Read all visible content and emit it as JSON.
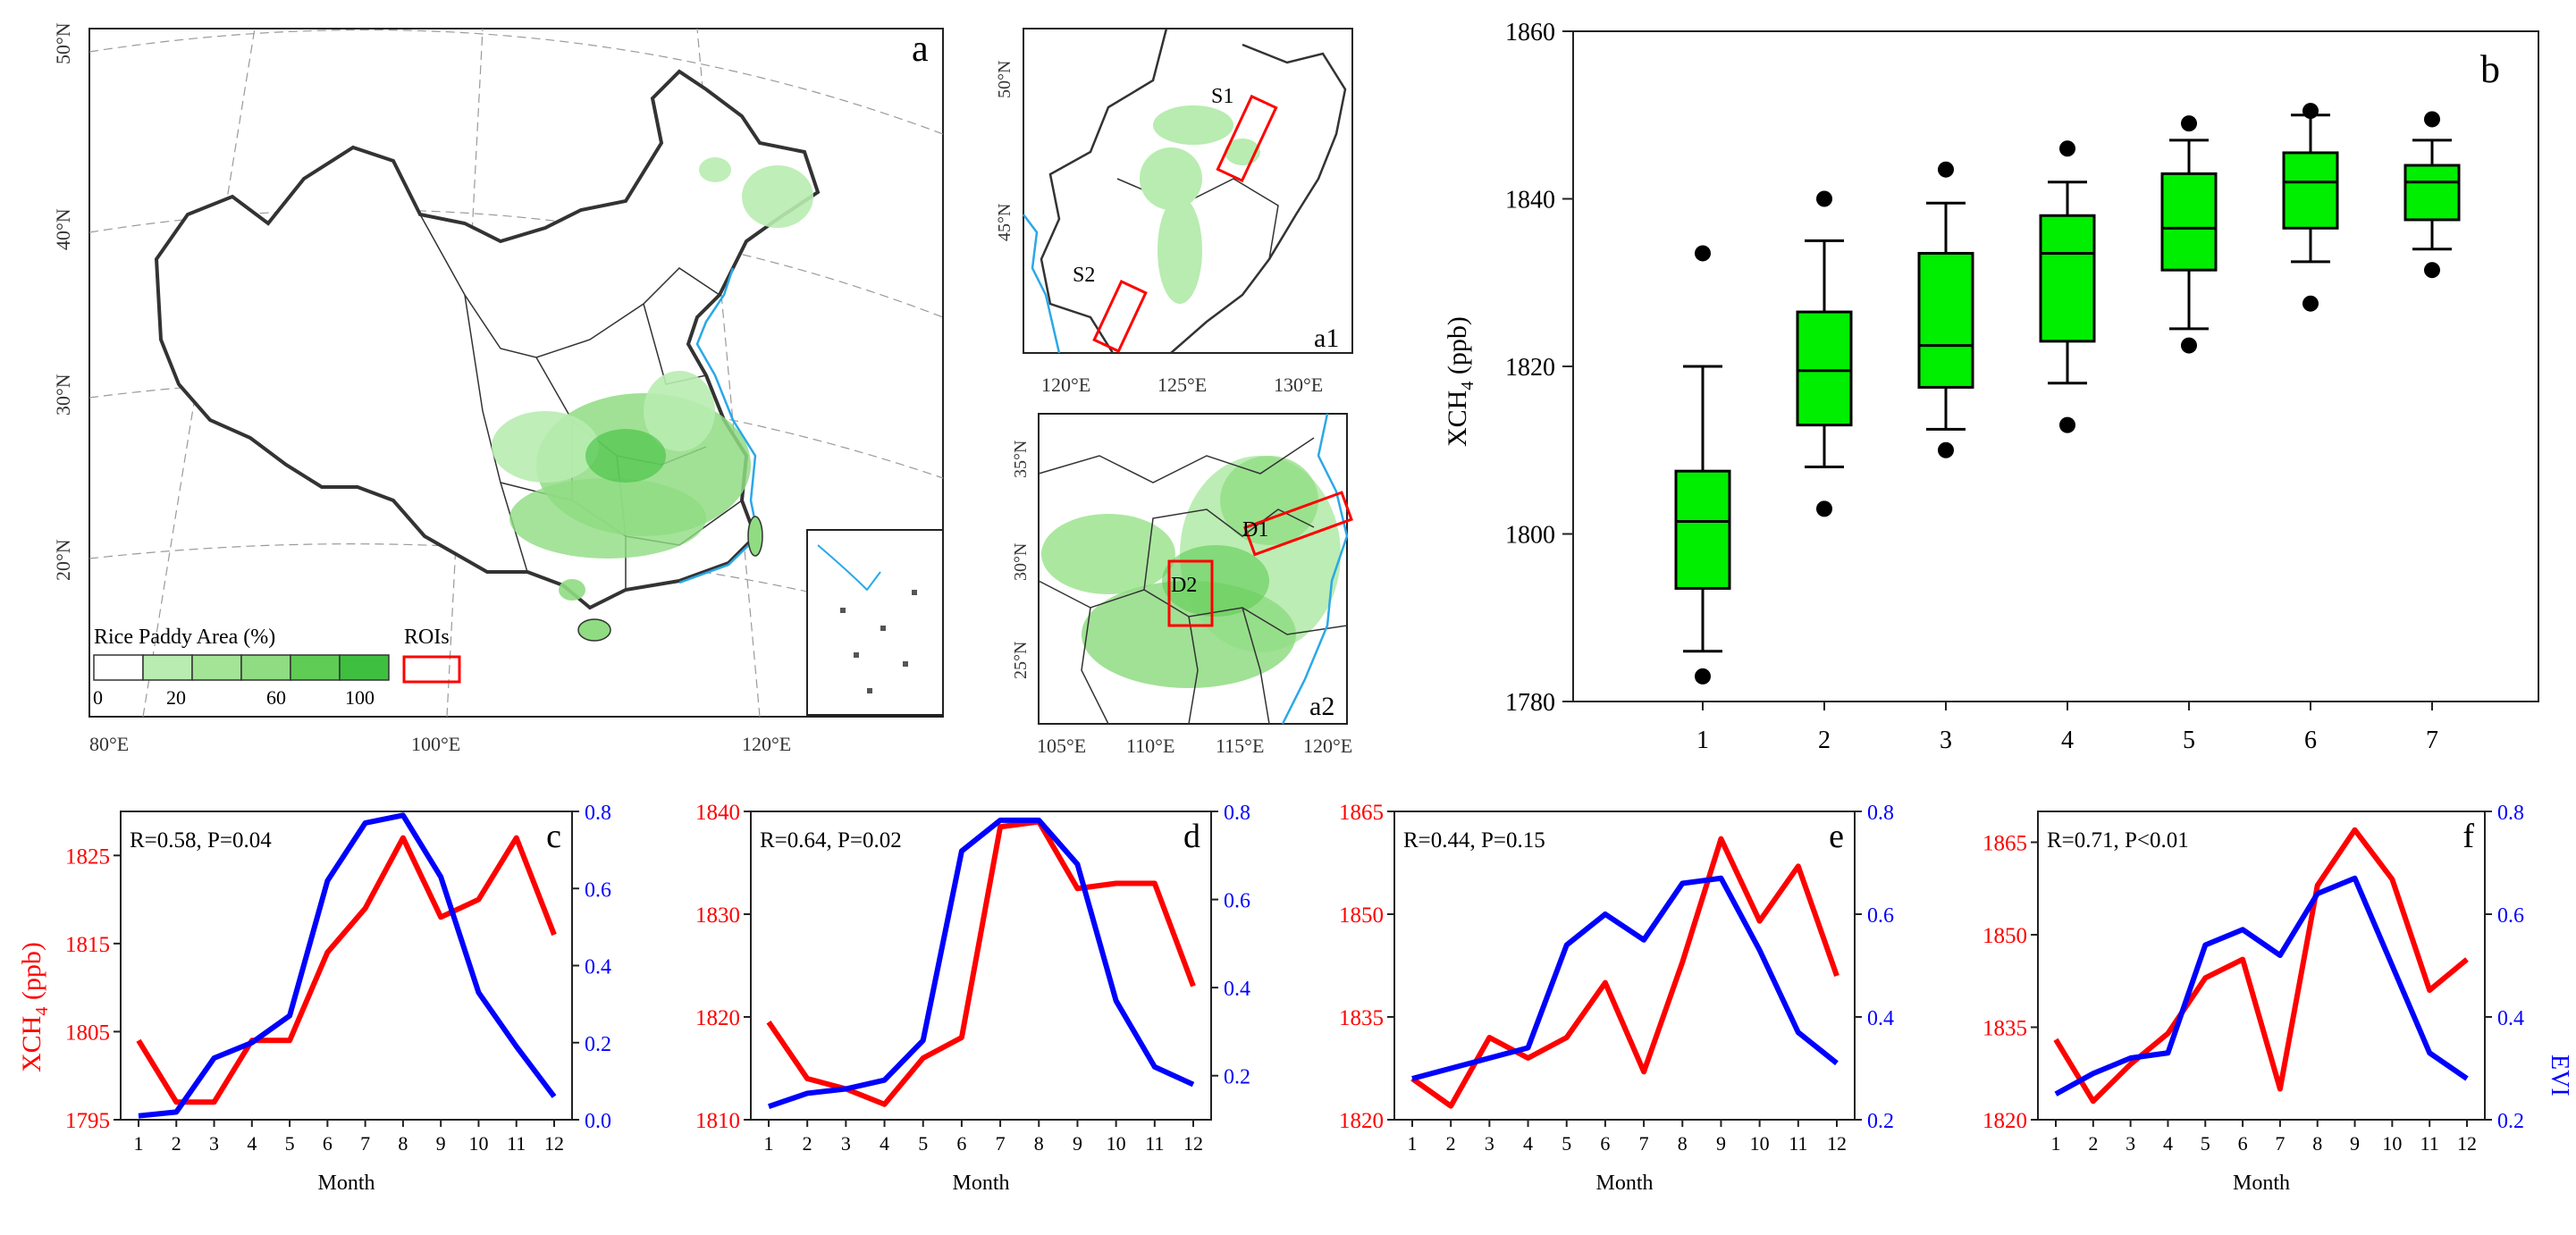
{
  "colors": {
    "rice_light": "#b8ecb0",
    "rice_mid": "#8fdc82",
    "rice_dark": "#3fbf3f",
    "roi": "#ff0000",
    "coast": "#2aa8e8",
    "border": "#333333",
    "box_fill": "#00ee00",
    "xch4": "#ff0000",
    "evi": "#0000ff"
  },
  "map_a": {
    "panel_letter": "a",
    "lat_labels": [
      "50°N",
      "40°N",
      "30°N",
      "20°N"
    ],
    "lon_labels": [
      "80°E",
      "100°E",
      "120°E"
    ],
    "legend_title": "Rice Paddy Area (%)",
    "legend_ticks": [
      "0",
      "20",
      "60",
      "100"
    ],
    "legend_roi": "ROIs"
  },
  "map_a1": {
    "panel_letter": "a1",
    "lat_labels": [
      "50°N",
      "45°N"
    ],
    "lon_labels": [
      "120°E",
      "125°E",
      "130°E"
    ],
    "roi_labels": [
      "S1",
      "S2"
    ]
  },
  "map_a2": {
    "panel_letter": "a2",
    "lat_labels": [
      "35°N",
      "30°N",
      "25°N"
    ],
    "lon_labels": [
      "105°E",
      "110°E",
      "115°E",
      "120°E"
    ],
    "roi_labels": [
      "D1",
      "D2"
    ]
  },
  "chart_data": [
    {
      "panel": "b",
      "type": "box",
      "ylabel_main": "XCH",
      "ylabel_sub": "4",
      "ylabel_unit": " (ppb)",
      "ylim": [
        1780,
        1860
      ],
      "yticks": [
        1780,
        1800,
        1820,
        1840,
        1860
      ],
      "categories": [
        "1",
        "2",
        "3",
        "4",
        "5",
        "6",
        "7"
      ],
      "boxes": [
        {
          "q1": 1793.5,
          "median": 1801.5,
          "q3": 1807.5,
          "whisker_low": 1786,
          "whisker_high": 1820,
          "outliers": [
            1783,
            1833.5
          ]
        },
        {
          "q1": 1813,
          "median": 1819.5,
          "q3": 1826.5,
          "whisker_low": 1808,
          "whisker_high": 1835,
          "outliers": [
            1803,
            1840
          ]
        },
        {
          "q1": 1817.5,
          "median": 1822.5,
          "q3": 1833.5,
          "whisker_low": 1812.5,
          "whisker_high": 1839.5,
          "outliers": [
            1810,
            1843.5
          ]
        },
        {
          "q1": 1823,
          "median": 1833.5,
          "q3": 1838,
          "whisker_low": 1818,
          "whisker_high": 1842,
          "outliers": [
            1813,
            1846
          ]
        },
        {
          "q1": 1831.5,
          "median": 1836.5,
          "q3": 1843,
          "whisker_low": 1824.5,
          "whisker_high": 1847,
          "outliers": [
            1822.5,
            1849
          ]
        },
        {
          "q1": 1836.5,
          "median": 1842,
          "q3": 1845.5,
          "whisker_low": 1832.5,
          "whisker_high": 1850,
          "outliers": [
            1827.5,
            1850.5
          ]
        },
        {
          "q1": 1837.5,
          "median": 1842,
          "q3": 1844,
          "whisker_low": 1834,
          "whisker_high": 1847,
          "outliers": [
            1831.5,
            1849.5
          ]
        }
      ]
    },
    {
      "panel": "c",
      "type": "line",
      "stat": "R=0.58, P=0.04",
      "x": [
        1,
        2,
        3,
        4,
        5,
        6,
        7,
        8,
        9,
        10,
        11,
        12
      ],
      "xlabel": "Month",
      "ylim_left": [
        1795,
        1830
      ],
      "yticks_left": [
        1795,
        1805,
        1815,
        1825
      ],
      "ylim_right": [
        0,
        0.8
      ],
      "yticks_right": [
        "0.0",
        "0.2",
        "0.4",
        "0.6",
        "0.8"
      ],
      "ylabel_left_main": "XCH",
      "ylabel_left_sub": "4",
      "ylabel_left_unit": " (ppb)",
      "series": [
        {
          "name": "XCH4",
          "axis": "left",
          "values": [
            1804,
            1797,
            1797,
            1804,
            1804,
            1814,
            1819,
            1827,
            1818,
            1820,
            1827,
            1816
          ]
        },
        {
          "name": "EVI",
          "axis": "right",
          "values": [
            0.01,
            0.02,
            0.16,
            0.2,
            0.27,
            0.62,
            0.77,
            0.79,
            0.63,
            0.33,
            0.19,
            0.06
          ]
        }
      ]
    },
    {
      "panel": "d",
      "type": "line",
      "stat": "R=0.64, P=0.02",
      "x": [
        1,
        2,
        3,
        4,
        5,
        6,
        7,
        8,
        9,
        10,
        11,
        12
      ],
      "xlabel": "Month",
      "ylim_left": [
        1810,
        1840
      ],
      "yticks_left": [
        1810,
        1820,
        1830,
        1840
      ],
      "ylim_right": [
        0.1,
        0.8
      ],
      "yticks_right": [
        "0.2",
        "0.4",
        "0.6",
        "0.8"
      ],
      "series": [
        {
          "name": "XCH4",
          "axis": "left",
          "values": [
            1819.5,
            1814,
            1813,
            1811.5,
            1816,
            1818,
            1838.5,
            1839,
            1832.5,
            1833,
            1833,
            1823
          ]
        },
        {
          "name": "EVI",
          "axis": "right",
          "values": [
            0.13,
            0.16,
            0.17,
            0.19,
            0.28,
            0.71,
            0.78,
            0.78,
            0.68,
            0.37,
            0.22,
            0.18
          ]
        }
      ]
    },
    {
      "panel": "e",
      "type": "line",
      "stat": "R=0.44, P=0.15",
      "x": [
        1,
        2,
        3,
        4,
        5,
        6,
        7,
        8,
        9,
        10,
        11,
        12
      ],
      "xlabel": "Month",
      "ylim_left": [
        1820,
        1865
      ],
      "yticks_left": [
        1820,
        1835,
        1850,
        1865
      ],
      "ylim_right": [
        0.2,
        0.8
      ],
      "yticks_right": [
        "0.2",
        "0.4",
        "0.6",
        "0.8"
      ],
      "series": [
        {
          "name": "XCH4",
          "axis": "left",
          "values": [
            1826,
            1822,
            1832,
            1829,
            1832,
            1840,
            1827,
            1843,
            1861,
            1849,
            1857,
            1841
          ]
        },
        {
          "name": "EVI",
          "axis": "right",
          "values": [
            0.28,
            0.3,
            0.32,
            0.34,
            0.54,
            0.6,
            0.55,
            0.66,
            0.67,
            0.53,
            0.37,
            0.31
          ]
        }
      ]
    },
    {
      "panel": "f",
      "type": "line",
      "stat": "R=0.71, P<0.01",
      "x": [
        1,
        2,
        3,
        4,
        5,
        6,
        7,
        8,
        9,
        10,
        11,
        12
      ],
      "xlabel": "Month",
      "ylim_left": [
        1820,
        1870
      ],
      "yticks_left": [
        1820,
        1835,
        1850,
        1865
      ],
      "ylim_right": [
        0.2,
        0.8
      ],
      "yticks_right": [
        "0.2",
        "0.4",
        "0.6",
        "0.8"
      ],
      "ylabel_right": "EVI",
      "series": [
        {
          "name": "XCH4",
          "axis": "left",
          "values": [
            1833,
            1823,
            1829,
            1834,
            1843,
            1846,
            1825,
            1858,
            1867,
            1859,
            1841,
            1846
          ]
        },
        {
          "name": "EVI",
          "axis": "right",
          "values": [
            0.25,
            0.29,
            0.32,
            0.33,
            0.54,
            0.57,
            0.52,
            0.64,
            0.67,
            0.5,
            0.33,
            0.28
          ]
        }
      ]
    }
  ]
}
